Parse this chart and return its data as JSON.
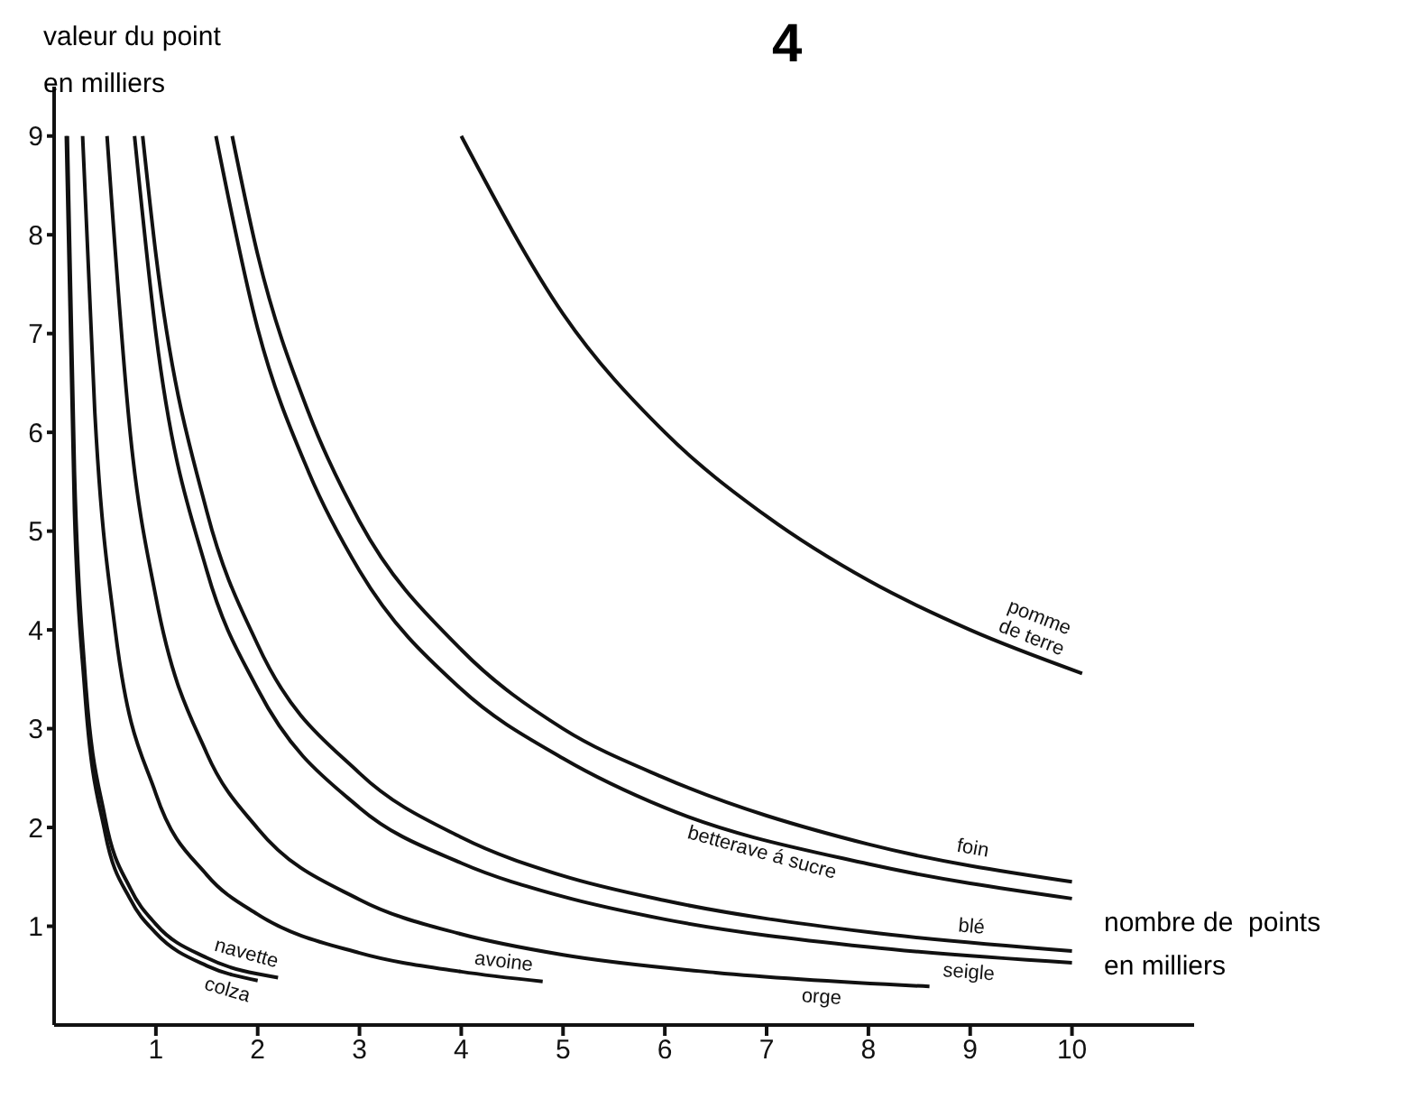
{
  "chart_data": {
    "type": "line",
    "title": "4",
    "ylabel": "valeur du point\nen milliers",
    "xlabel": "nombre de  points\nen milliers",
    "xlim": [
      0,
      11.2
    ],
    "ylim": [
      0,
      9.5
    ],
    "xticks": [
      1,
      2,
      3,
      4,
      5,
      6,
      7,
      8,
      9,
      10
    ],
    "yticks": [
      1,
      2,
      3,
      4,
      5,
      6,
      7,
      8,
      9
    ],
    "grid": false,
    "legend": false,
    "marker": "none",
    "line_style": "solid",
    "series": [
      {
        "name": "colza",
        "color": "#111111",
        "x": [
          0.12,
          0.2,
          0.3,
          0.5,
          0.75,
          1,
          1.5,
          2
        ],
        "values": [
          9,
          5.2,
          3.4,
          1.95,
          1.27,
          0.93,
          0.6,
          0.45
        ]
      },
      {
        "name": "navette",
        "color": "#111111",
        "x": [
          0.13,
          0.2,
          0.3,
          0.5,
          0.75,
          1,
          1.5,
          2.2
        ],
        "values": [
          9,
          5.6,
          3.6,
          2.1,
          1.38,
          1.02,
          0.68,
          0.48
        ]
      },
      {
        "name": "avoine",
        "color": "#111111",
        "x": [
          0.28,
          0.4,
          0.6,
          1,
          1.5,
          2,
          3,
          4,
          4.8
        ],
        "values": [
          9,
          6.2,
          4,
          2.34,
          1.52,
          1.12,
          0.73,
          0.54,
          0.44
        ]
      },
      {
        "name": "orge",
        "color": "#111111",
        "x": [
          0.52,
          0.75,
          1,
          1.5,
          2,
          3,
          4,
          5,
          6.5,
          8.6
        ],
        "values": [
          9,
          5.97,
          4.33,
          2.75,
          1.99,
          1.27,
          0.92,
          0.71,
          0.53,
          0.39
        ]
      },
      {
        "name": "seigle",
        "color": "#111111",
        "x": [
          0.79,
          1,
          1.5,
          2,
          3,
          4,
          5,
          6,
          8,
          10
        ],
        "values": [
          9,
          7,
          4.6,
          3.4,
          2.2,
          1.64,
          1.3,
          1.07,
          0.79,
          0.63
        ]
      },
      {
        "name": "blé",
        "color": "#111111",
        "x": [
          0.87,
          1,
          1.5,
          2,
          3,
          4,
          5,
          6,
          8,
          10
        ],
        "values": [
          9,
          7.8,
          5.2,
          3.85,
          2.55,
          1.9,
          1.51,
          1.26,
          0.94,
          0.75
        ]
      },
      {
        "name": "betterave á sucre",
        "color": "#111111",
        "x": [
          1.59,
          2,
          2.5,
          3,
          4,
          5,
          6,
          8,
          10
        ],
        "values": [
          9,
          7.05,
          5.6,
          4.6,
          3.4,
          2.7,
          2.2,
          1.63,
          1.28
        ]
      },
      {
        "name": "foin",
        "color": "#111111",
        "x": [
          1.75,
          2,
          2.5,
          3,
          4,
          5,
          6,
          8,
          10
        ],
        "values": [
          9,
          7.8,
          6.2,
          5.1,
          3.8,
          3,
          2.5,
          1.83,
          1.45
        ]
      },
      {
        "name": "pomme\nde terre",
        "color": "#111111",
        "x": [
          4,
          5,
          6,
          7,
          8,
          9,
          10.1
        ],
        "values": [
          9,
          7.2,
          6,
          5.15,
          4.5,
          4,
          3.56
        ]
      }
    ]
  }
}
